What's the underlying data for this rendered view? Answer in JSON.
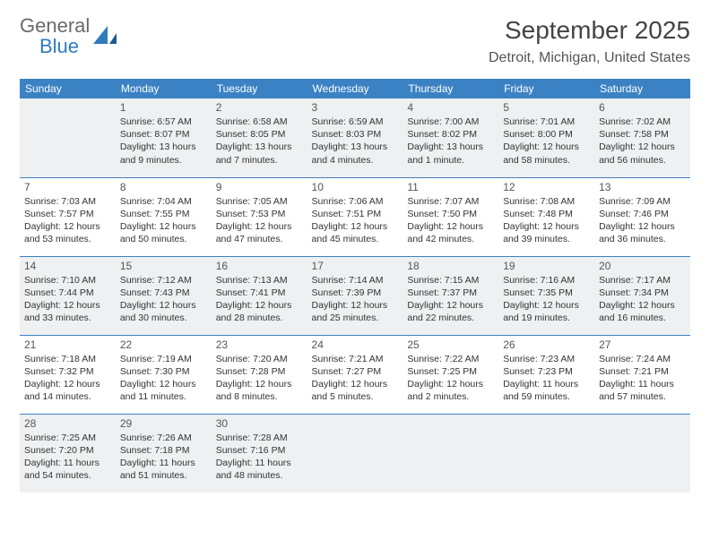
{
  "logo": {
    "text1": "General",
    "text2": "Blue"
  },
  "title": "September 2025",
  "location": "Detroit, Michigan, United States",
  "colors": {
    "header_bg": "#3b82c4",
    "header_fg": "#ffffff",
    "row_alt": "#eef0f1",
    "border": "#3b82c4"
  },
  "day_headers": [
    "Sunday",
    "Monday",
    "Tuesday",
    "Wednesday",
    "Thursday",
    "Friday",
    "Saturday"
  ],
  "weeks": [
    [
      null,
      {
        "n": "1",
        "sr": "Sunrise: 6:57 AM",
        "ss": "Sunset: 8:07 PM",
        "dl": "Daylight: 13 hours and 9 minutes."
      },
      {
        "n": "2",
        "sr": "Sunrise: 6:58 AM",
        "ss": "Sunset: 8:05 PM",
        "dl": "Daylight: 13 hours and 7 minutes."
      },
      {
        "n": "3",
        "sr": "Sunrise: 6:59 AM",
        "ss": "Sunset: 8:03 PM",
        "dl": "Daylight: 13 hours and 4 minutes."
      },
      {
        "n": "4",
        "sr": "Sunrise: 7:00 AM",
        "ss": "Sunset: 8:02 PM",
        "dl": "Daylight: 13 hours and 1 minute."
      },
      {
        "n": "5",
        "sr": "Sunrise: 7:01 AM",
        "ss": "Sunset: 8:00 PM",
        "dl": "Daylight: 12 hours and 58 minutes."
      },
      {
        "n": "6",
        "sr": "Sunrise: 7:02 AM",
        "ss": "Sunset: 7:58 PM",
        "dl": "Daylight: 12 hours and 56 minutes."
      }
    ],
    [
      {
        "n": "7",
        "sr": "Sunrise: 7:03 AM",
        "ss": "Sunset: 7:57 PM",
        "dl": "Daylight: 12 hours and 53 minutes."
      },
      {
        "n": "8",
        "sr": "Sunrise: 7:04 AM",
        "ss": "Sunset: 7:55 PM",
        "dl": "Daylight: 12 hours and 50 minutes."
      },
      {
        "n": "9",
        "sr": "Sunrise: 7:05 AM",
        "ss": "Sunset: 7:53 PM",
        "dl": "Daylight: 12 hours and 47 minutes."
      },
      {
        "n": "10",
        "sr": "Sunrise: 7:06 AM",
        "ss": "Sunset: 7:51 PM",
        "dl": "Daylight: 12 hours and 45 minutes."
      },
      {
        "n": "11",
        "sr": "Sunrise: 7:07 AM",
        "ss": "Sunset: 7:50 PM",
        "dl": "Daylight: 12 hours and 42 minutes."
      },
      {
        "n": "12",
        "sr": "Sunrise: 7:08 AM",
        "ss": "Sunset: 7:48 PM",
        "dl": "Daylight: 12 hours and 39 minutes."
      },
      {
        "n": "13",
        "sr": "Sunrise: 7:09 AM",
        "ss": "Sunset: 7:46 PM",
        "dl": "Daylight: 12 hours and 36 minutes."
      }
    ],
    [
      {
        "n": "14",
        "sr": "Sunrise: 7:10 AM",
        "ss": "Sunset: 7:44 PM",
        "dl": "Daylight: 12 hours and 33 minutes."
      },
      {
        "n": "15",
        "sr": "Sunrise: 7:12 AM",
        "ss": "Sunset: 7:43 PM",
        "dl": "Daylight: 12 hours and 30 minutes."
      },
      {
        "n": "16",
        "sr": "Sunrise: 7:13 AM",
        "ss": "Sunset: 7:41 PM",
        "dl": "Daylight: 12 hours and 28 minutes."
      },
      {
        "n": "17",
        "sr": "Sunrise: 7:14 AM",
        "ss": "Sunset: 7:39 PM",
        "dl": "Daylight: 12 hours and 25 minutes."
      },
      {
        "n": "18",
        "sr": "Sunrise: 7:15 AM",
        "ss": "Sunset: 7:37 PM",
        "dl": "Daylight: 12 hours and 22 minutes."
      },
      {
        "n": "19",
        "sr": "Sunrise: 7:16 AM",
        "ss": "Sunset: 7:35 PM",
        "dl": "Daylight: 12 hours and 19 minutes."
      },
      {
        "n": "20",
        "sr": "Sunrise: 7:17 AM",
        "ss": "Sunset: 7:34 PM",
        "dl": "Daylight: 12 hours and 16 minutes."
      }
    ],
    [
      {
        "n": "21",
        "sr": "Sunrise: 7:18 AM",
        "ss": "Sunset: 7:32 PM",
        "dl": "Daylight: 12 hours and 14 minutes."
      },
      {
        "n": "22",
        "sr": "Sunrise: 7:19 AM",
        "ss": "Sunset: 7:30 PM",
        "dl": "Daylight: 12 hours and 11 minutes."
      },
      {
        "n": "23",
        "sr": "Sunrise: 7:20 AM",
        "ss": "Sunset: 7:28 PM",
        "dl": "Daylight: 12 hours and 8 minutes."
      },
      {
        "n": "24",
        "sr": "Sunrise: 7:21 AM",
        "ss": "Sunset: 7:27 PM",
        "dl": "Daylight: 12 hours and 5 minutes."
      },
      {
        "n": "25",
        "sr": "Sunrise: 7:22 AM",
        "ss": "Sunset: 7:25 PM",
        "dl": "Daylight: 12 hours and 2 minutes."
      },
      {
        "n": "26",
        "sr": "Sunrise: 7:23 AM",
        "ss": "Sunset: 7:23 PM",
        "dl": "Daylight: 11 hours and 59 minutes."
      },
      {
        "n": "27",
        "sr": "Sunrise: 7:24 AM",
        "ss": "Sunset: 7:21 PM",
        "dl": "Daylight: 11 hours and 57 minutes."
      }
    ],
    [
      {
        "n": "28",
        "sr": "Sunrise: 7:25 AM",
        "ss": "Sunset: 7:20 PM",
        "dl": "Daylight: 11 hours and 54 minutes."
      },
      {
        "n": "29",
        "sr": "Sunrise: 7:26 AM",
        "ss": "Sunset: 7:18 PM",
        "dl": "Daylight: 11 hours and 51 minutes."
      },
      {
        "n": "30",
        "sr": "Sunrise: 7:28 AM",
        "ss": "Sunset: 7:16 PM",
        "dl": "Daylight: 11 hours and 48 minutes."
      },
      null,
      null,
      null,
      null
    ]
  ]
}
